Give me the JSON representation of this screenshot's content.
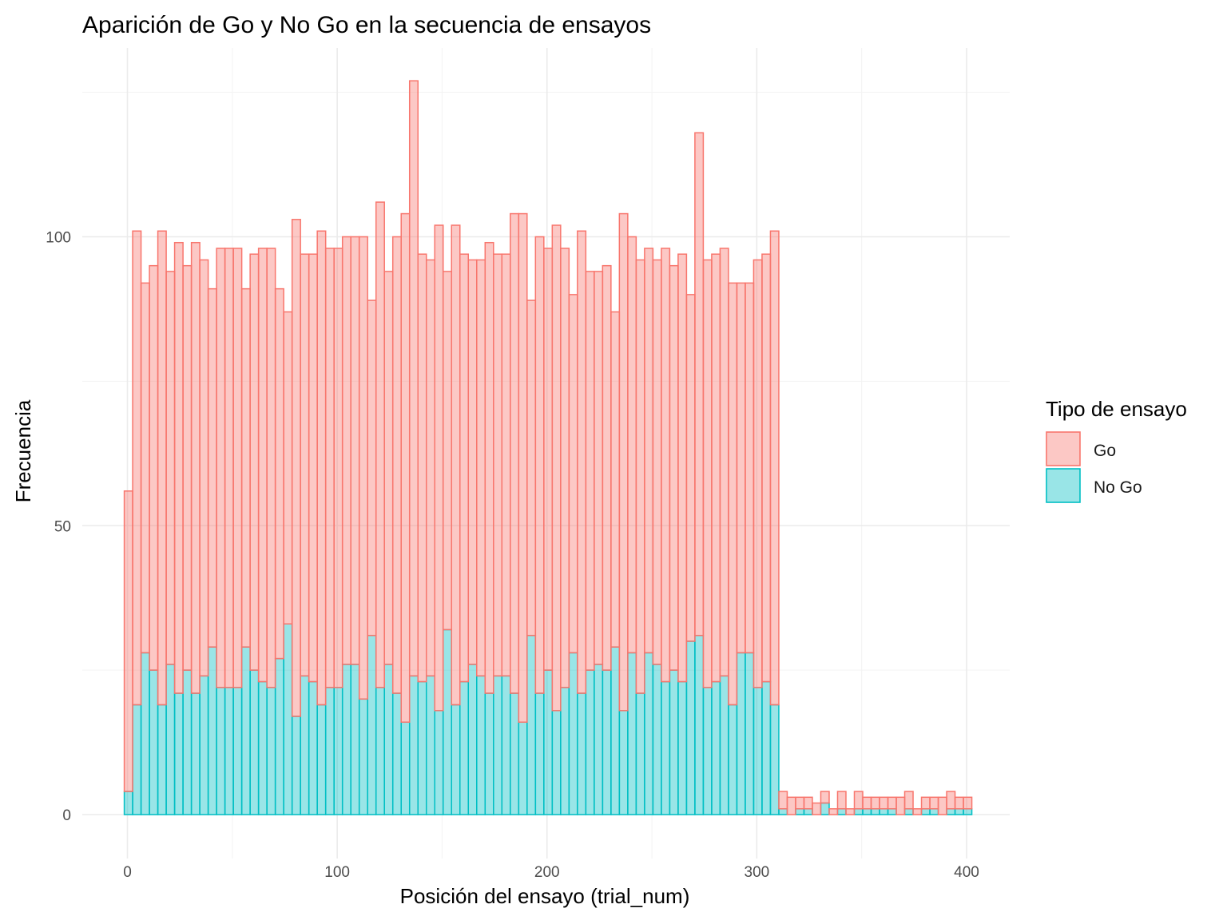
{
  "chart_data": {
    "type": "bar",
    "subtype": "stacked-histogram",
    "title": "Aparición de Go y No Go en la secuencia de ensayos",
    "xlabel": "Posición del ensayo (trial_num)",
    "ylabel": "Frecuencia",
    "xlim": [
      -1.5,
      401.5
    ],
    "ylim": [
      0,
      128
    ],
    "x_ticks": [
      0,
      100,
      200,
      300,
      400
    ],
    "x_tick_labels": [
      "0",
      "100",
      "200",
      "300",
      "400"
    ],
    "y_ticks": [
      0,
      50,
      100
    ],
    "y_tick_labels": [
      "0",
      "50",
      "100"
    ],
    "grid": true,
    "legend_position": "right",
    "legend": {
      "title": "Tipo de ensayo",
      "entries": [
        {
          "label": "Go",
          "fill": "#F8766D",
          "fill_opacity": 0.4,
          "stroke": "#F8766D"
        },
        {
          "label": "No Go",
          "fill": "#00BFC4",
          "fill_opacity": 0.4,
          "stroke": "#00BFC4"
        }
      ]
    },
    "bin_starts": [
      -1.5,
      2.5,
      6.5,
      10.5,
      14.5,
      18.5,
      22.5,
      26.5,
      30.5,
      34.5,
      38.5,
      42.5,
      46.5,
      50.5,
      54.5,
      58.5,
      62.5,
      66.5,
      70.5,
      74.5,
      78.5,
      82.5,
      86.5,
      90.5,
      94.5,
      98.5,
      102.5,
      106.5,
      110.5,
      114.5,
      118.5,
      122.5,
      126.5,
      130.5,
      134.5,
      138.5,
      142.5,
      146.5,
      150.5,
      154.5,
      158.5,
      162.5,
      166.5,
      170.5,
      174.5,
      178.5,
      182.5,
      186.5,
      190.5,
      194.5,
      198.5,
      202.5,
      206.5,
      210.5,
      214.5,
      218.5,
      222.5,
      226.5,
      230.5,
      234.5,
      238.5,
      242.5,
      246.5,
      250.5,
      254.5,
      258.5,
      262.5,
      266.5,
      270.5,
      274.5,
      278.5,
      282.5,
      286.5,
      290.5,
      294.5,
      298.5,
      302.5,
      306.5,
      310.5,
      314.5,
      318.5,
      322.5,
      326.5,
      330.5,
      334.5,
      338.5,
      342.5,
      346.5,
      350.5,
      354.5,
      358.5,
      362.5,
      366.5,
      370.5,
      374.5,
      378.5,
      382.5,
      386.5,
      390.5,
      394.5,
      398.5
    ],
    "bin_width": 4,
    "series": [
      {
        "name": "No Go",
        "values": [
          4,
          19,
          28,
          25,
          19,
          26,
          21,
          25,
          21,
          24,
          29,
          22,
          22,
          22,
          29,
          25,
          23,
          22,
          27,
          33,
          17,
          24,
          23,
          19,
          22,
          22,
          26,
          26,
          20,
          31,
          22,
          26,
          21,
          16,
          24,
          23,
          24,
          18,
          32,
          19,
          23,
          26,
          24,
          21,
          24,
          24,
          21,
          16,
          31,
          21,
          25,
          18,
          22,
          28,
          21,
          25,
          26,
          25,
          29,
          18,
          28,
          21,
          28,
          26,
          23,
          25,
          23,
          30,
          31,
          22,
          23,
          24,
          19,
          28,
          28,
          22,
          23,
          19,
          1,
          0,
          1,
          1,
          0,
          2,
          0,
          1,
          0,
          1,
          1,
          1,
          1,
          1,
          0,
          1,
          0,
          1,
          1,
          0,
          1,
          1,
          1
        ],
        "fill": "#00BFC4",
        "stroke": "#00BFC4"
      },
      {
        "name": "Go",
        "values": [
          52,
          82,
          64,
          70,
          82,
          68,
          78,
          70,
          78,
          72,
          62,
          76,
          76,
          76,
          62,
          72,
          75,
          76,
          64,
          54,
          86,
          73,
          74,
          82,
          76,
          76,
          74,
          74,
          80,
          58,
          84,
          68,
          79,
          88,
          103,
          74,
          72,
          84,
          62,
          83,
          74,
          70,
          72,
          78,
          73,
          73,
          83,
          88,
          58,
          79,
          73,
          84,
          76,
          62,
          80,
          69,
          68,
          70,
          58,
          86,
          72,
          75,
          70,
          70,
          75,
          70,
          74,
          60,
          87,
          74,
          74,
          74,
          73,
          64,
          64,
          74,
          74,
          82,
          3,
          3,
          2,
          2,
          2,
          2,
          1,
          3,
          1,
          3,
          2,
          2,
          2,
          2,
          3,
          3,
          1,
          2,
          2,
          3,
          3,
          2,
          2
        ],
        "fill": "#F8766D",
        "stroke": "#F8766D"
      }
    ]
  }
}
